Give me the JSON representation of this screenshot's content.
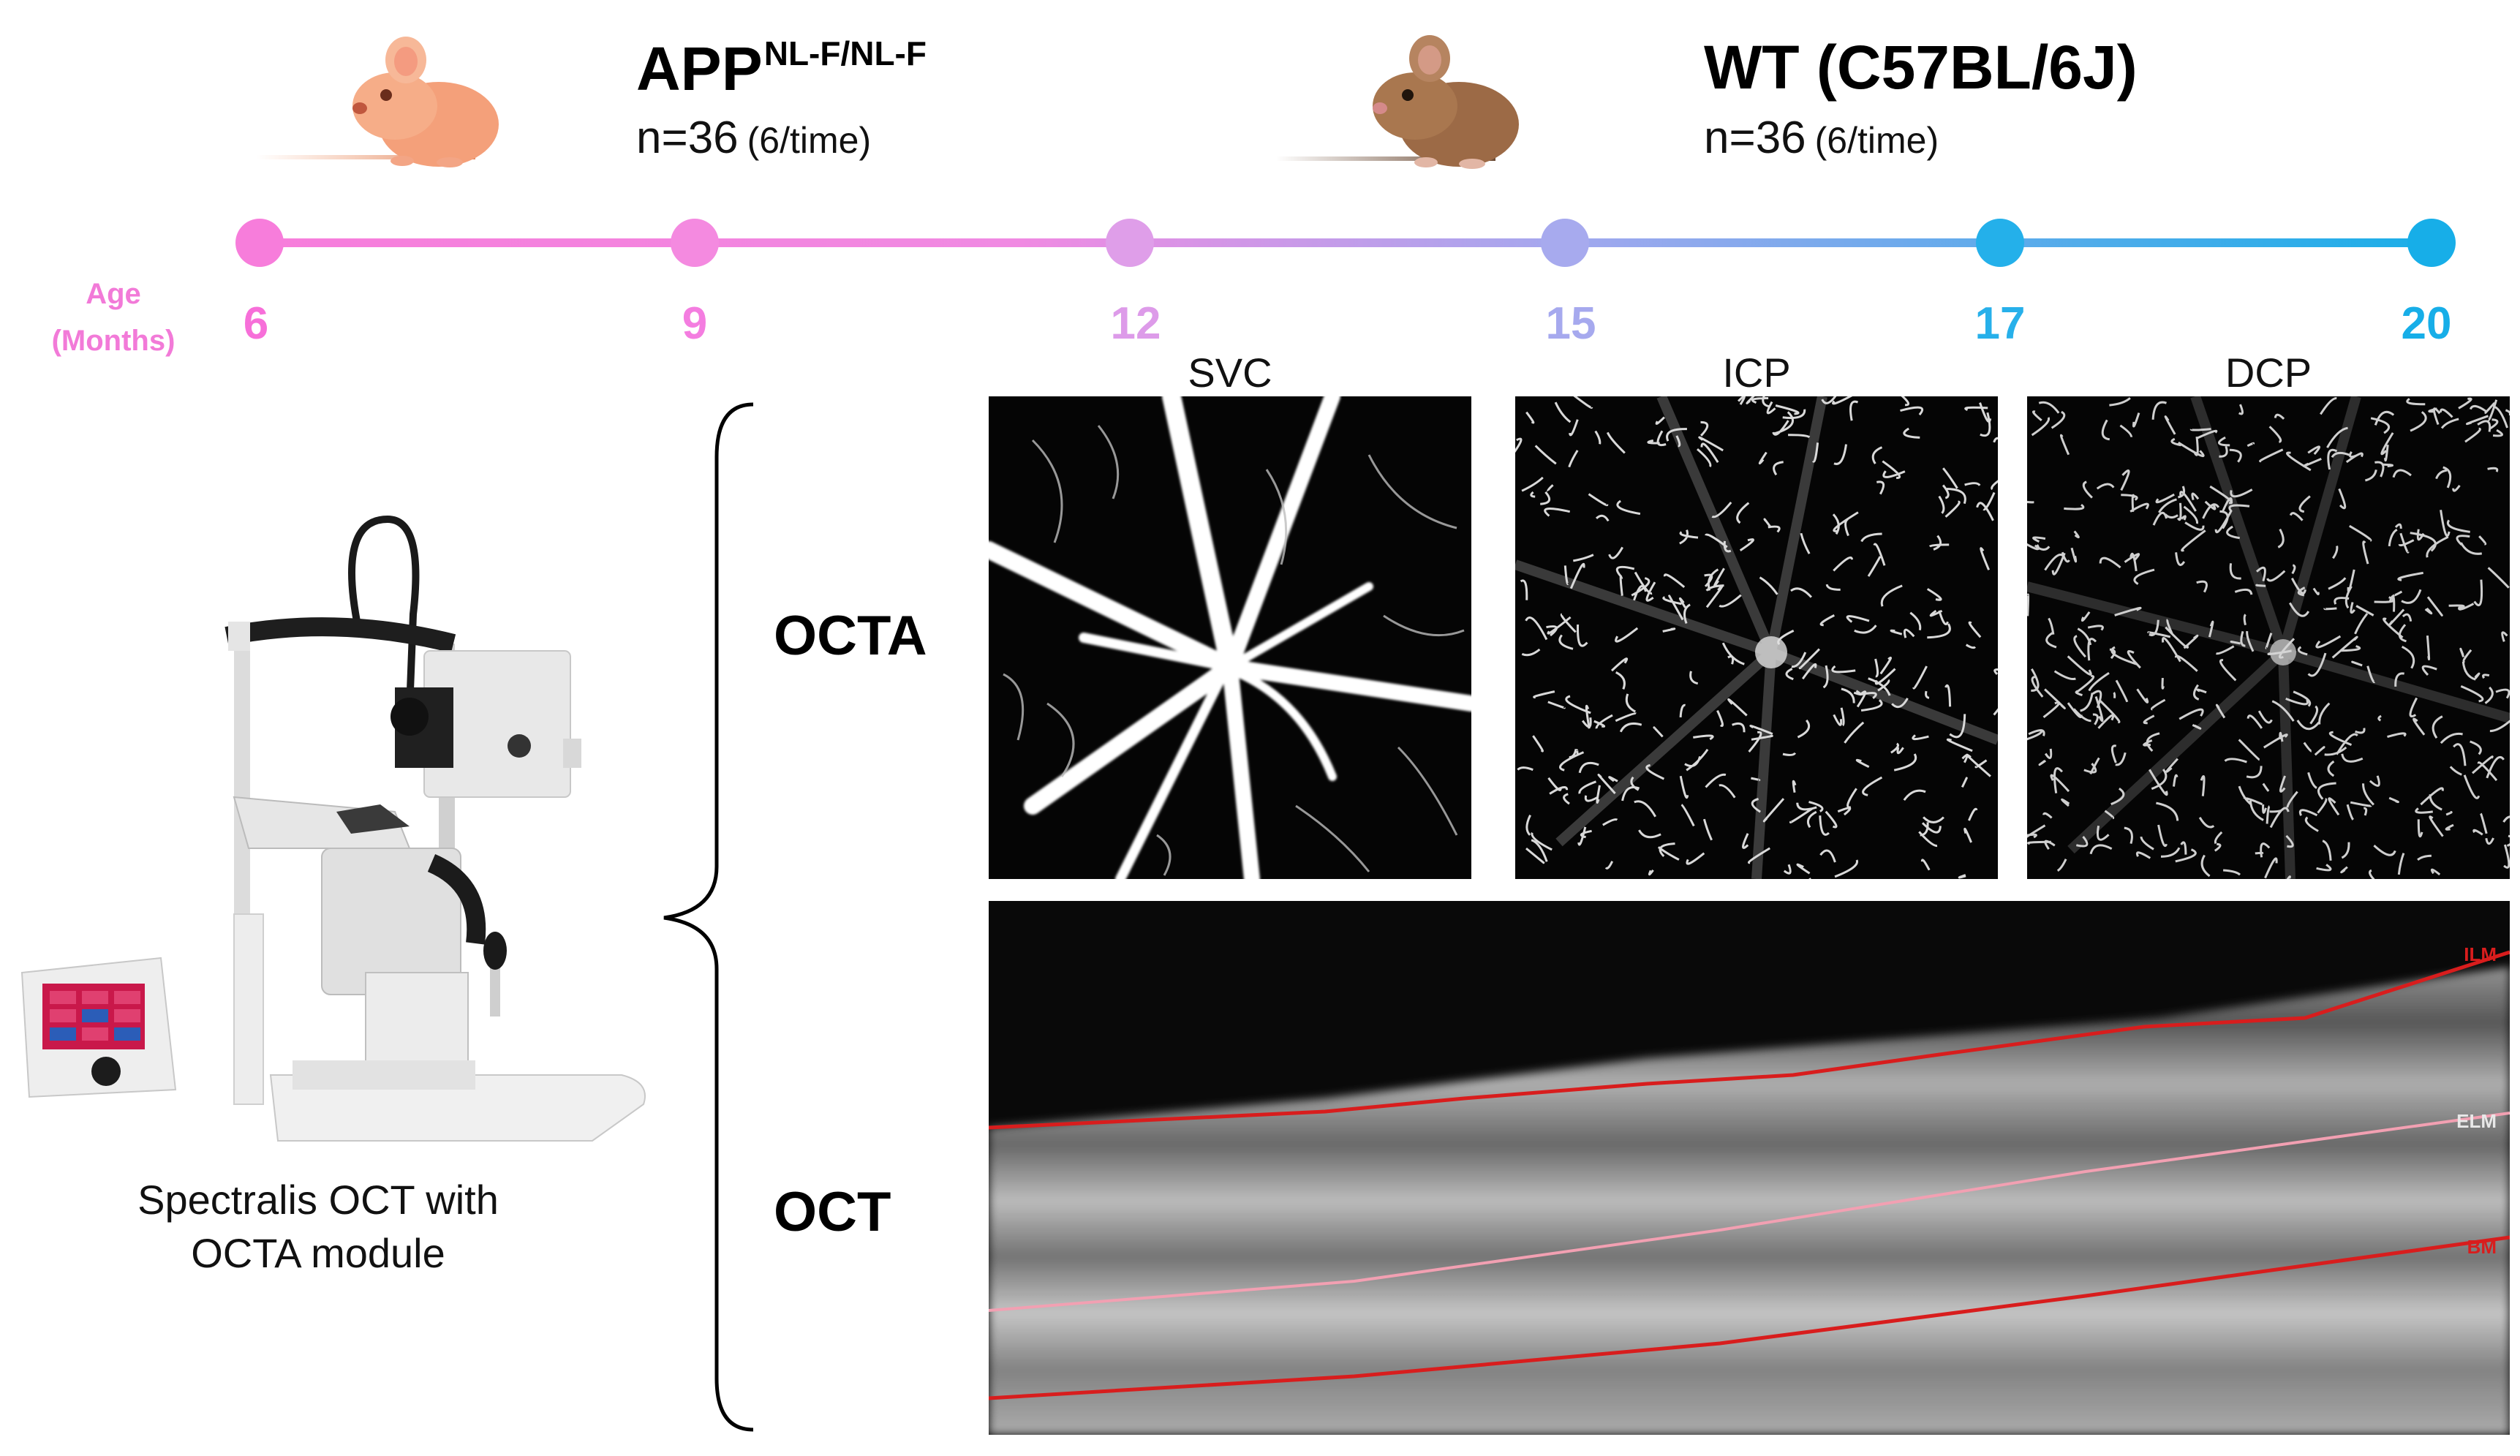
{
  "groups": [
    {
      "title_main": "APP",
      "title_sup": "NL-F/NL-F",
      "n": "n=36",
      "n_note": "(6/time)",
      "mouse_icon": "mouse-icon",
      "fur_color": "#f2a27a"
    },
    {
      "title_main": "WT (C57BL/6J)",
      "n": "n=36",
      "n_note": "(6/time)",
      "mouse_icon": "mouse-icon",
      "fur_color": "#b07a52"
    }
  ],
  "timeline": {
    "axis_label": "Age (Months)",
    "ticks": [
      {
        "label": "6",
        "color": "#f76fd9"
      },
      {
        "label": "9",
        "color": "#f47de0"
      },
      {
        "label": "12",
        "color": "#dd9be9"
      },
      {
        "label": "15",
        "color": "#a6a9ee"
      },
      {
        "label": "17",
        "color": "#27b0ea"
      },
      {
        "label": "20",
        "color": "#17aee8"
      }
    ],
    "gradient_start": "#f77ddb",
    "gradient_end": "#1aaee8"
  },
  "device": {
    "caption_line1": "Spectralis OCT with",
    "caption_line2": "OCTA module",
    "icon": "oct-device-icon"
  },
  "rows": {
    "octa_label": "OCTA",
    "oct_label": "OCT"
  },
  "octa_panels": [
    {
      "label": "SVC"
    },
    {
      "label": "ICP"
    },
    {
      "label": "DCP"
    }
  ],
  "oct_layers": {
    "ilm": {
      "label": "ILM",
      "color": "#d81d1d"
    },
    "elm": {
      "label": "ELM",
      "color": "#f2a0b2"
    },
    "bm": {
      "label": "BM",
      "color": "#d81d1d"
    }
  }
}
